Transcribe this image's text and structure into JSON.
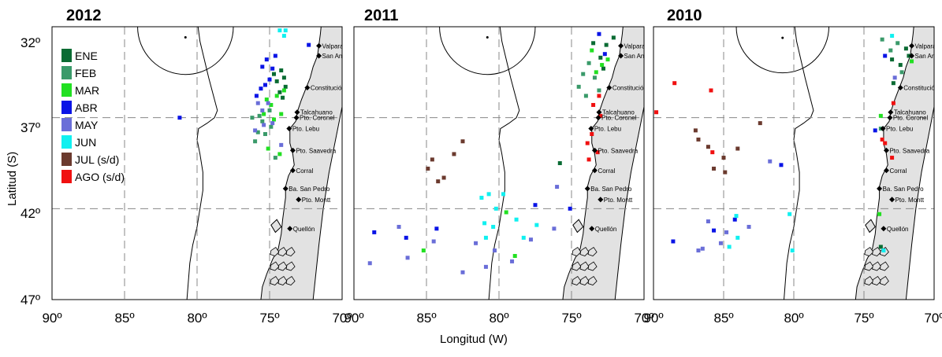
{
  "figure": {
    "xlabel": "Longitud (W)",
    "ylabel": "Latitud (S)"
  },
  "legend": [
    {
      "label": "ENE",
      "color": "#0a6b33"
    },
    {
      "label": "FEB",
      "color": "#3a9a6a"
    },
    {
      "label": "MAR",
      "color": "#22e022"
    },
    {
      "label": "ABR",
      "color": "#0a14e6"
    },
    {
      "label": "MAY",
      "color": "#6a6ed8"
    },
    {
      "label": "JUN",
      "color": "#10f0f0"
    },
    {
      "label": "JUL (s/d)",
      "color": "#6b3a2e"
    },
    {
      "label": "AGO (s/d)",
      "color": "#f01010"
    }
  ],
  "cities": [
    {
      "name": "Valparaíso",
      "lon": 71.6,
      "lat": 33.05
    },
    {
      "name": "San Antonio",
      "lon": 71.6,
      "lat": 33.6
    },
    {
      "name": "Constitución",
      "lon": 72.4,
      "lat": 35.35
    },
    {
      "name": "Talcahuano",
      "lon": 73.1,
      "lat": 36.7
    },
    {
      "name": "Pto. Coronel",
      "lon": 73.15,
      "lat": 37.0
    },
    {
      "name": "Pto. Lebu",
      "lon": 73.65,
      "lat": 37.6
    },
    {
      "name": "Pto. Saavedra",
      "lon": 73.4,
      "lat": 38.8
    },
    {
      "name": "Corral",
      "lon": 73.4,
      "lat": 39.9
    },
    {
      "name": "Ba. San Pedro",
      "lon": 73.9,
      "lat": 40.9
    },
    {
      "name": "Pto. Montt",
      "lon": 73.0,
      "lat": 41.5
    },
    {
      "name": "Quellón",
      "lon": 73.6,
      "lat": 43.1
    }
  ],
  "chart_data": [
    {
      "type": "scatter",
      "title": "2012",
      "xlim": [
        90,
        70
      ],
      "ylim": [
        47,
        32
      ],
      "xticks": [
        "90º",
        "85º",
        "80º",
        "75º",
        "70º"
      ],
      "yticks": [
        "32º",
        "37º",
        "42º",
        "47º"
      ],
      "series": [
        {
          "name": "ENE",
          "points": [
            [
              74.2,
              34.4
            ],
            [
              74.0,
              34.8
            ],
            [
              74.5,
              35.0
            ],
            [
              73.9,
              35.3
            ],
            [
              74.3,
              35.6
            ],
            [
              74.7,
              34.6
            ],
            [
              74.1,
              35.9
            ]
          ]
        },
        {
          "name": "FEB",
          "points": [
            [
              75.5,
              37.2
            ],
            [
              75.8,
              37.8
            ],
            [
              76.0,
              38.3
            ],
            [
              75.3,
              37.9
            ],
            [
              74.6,
              39.2
            ],
            [
              76.2,
              37.0
            ],
            [
              75.0,
              36.6
            ],
            [
              74.9,
              37.5
            ],
            [
              75.7,
              36.9
            ]
          ]
        },
        {
          "name": "MAR",
          "points": [
            [
              74.5,
              35.8
            ],
            [
              74.9,
              36.3
            ],
            [
              74.2,
              36.8
            ],
            [
              75.2,
              36.0
            ],
            [
              74.7,
              37.1
            ],
            [
              75.4,
              36.8
            ],
            [
              74.0,
              35.5
            ],
            [
              75.1,
              38.7
            ],
            [
              74.3,
              39.0
            ]
          ]
        },
        {
          "name": "ABR",
          "points": [
            [
              75.2,
              33.8
            ],
            [
              75.5,
              34.2
            ],
            [
              74.8,
              34.3
            ],
            [
              75.0,
              34.9
            ],
            [
              75.6,
              35.4
            ],
            [
              74.6,
              33.6
            ],
            [
              75.3,
              35.2
            ],
            [
              72.3,
              33.0
            ],
            [
              75.9,
              35.8
            ],
            [
              81.2,
              37.0
            ]
          ]
        },
        {
          "name": "MAY",
          "points": [
            [
              75.8,
              36.2
            ],
            [
              75.5,
              36.6
            ],
            [
              74.8,
              37.3
            ],
            [
              75.4,
              37.4
            ],
            [
              76.0,
              37.7
            ],
            [
              74.2,
              38.5
            ],
            [
              75.1,
              36.2
            ]
          ]
        },
        {
          "name": "JUN",
          "points": [
            [
              73.9,
              32.2
            ],
            [
              74.3,
              32.2
            ],
            [
              74.0,
              32.5
            ]
          ]
        },
        {
          "name": "JUL (s/d)",
          "points": []
        },
        {
          "name": "AGO (s/d)",
          "points": []
        }
      ]
    },
    {
      "type": "scatter",
      "title": "2011",
      "xlim": [
        90,
        70
      ],
      "ylim": [
        47,
        32
      ],
      "xticks": [
        "90º",
        "85º",
        "80º",
        "75º",
        "70º"
      ],
      "yticks": [
        "32º",
        "37º",
        "42º",
        "47º"
      ],
      "series": [
        {
          "name": "ENE",
          "points": [
            [
              72.1,
              32.6
            ],
            [
              72.6,
              33.0
            ],
            [
              73.0,
              33.7
            ],
            [
              73.5,
              32.9
            ],
            [
              75.8,
              39.5
            ],
            [
              72.8,
              34.3
            ]
          ]
        },
        {
          "name": "FEB",
          "points": [
            [
              74.2,
              34.6
            ],
            [
              73.8,
              34.0
            ],
            [
              73.4,
              34.8
            ],
            [
              74.5,
              35.3
            ],
            [
              73.1,
              35.5
            ],
            [
              74.0,
              35.8
            ]
          ]
        },
        {
          "name": "MAR",
          "points": [
            [
              73.6,
              33.3
            ],
            [
              72.9,
              34.1
            ],
            [
              72.5,
              33.8
            ],
            [
              73.3,
              34.5
            ],
            [
              78.9,
              44.6
            ],
            [
              85.2,
              44.3
            ],
            [
              79.5,
              42.2
            ]
          ]
        },
        {
          "name": "ABR",
          "points": [
            [
              73.1,
              32.4
            ],
            [
              72.7,
              33.5
            ],
            [
              88.6,
              43.3
            ],
            [
              84.3,
              43.1
            ],
            [
              86.4,
              43.6
            ],
            [
              77.5,
              41.8
            ],
            [
              75.1,
              42.0
            ]
          ]
        },
        {
          "name": "MAY",
          "points": [
            [
              86.9,
              43.0
            ],
            [
              84.5,
              43.8
            ],
            [
              81.6,
              43.9
            ],
            [
              80.3,
              44.3
            ],
            [
              79.1,
              44.9
            ],
            [
              82.5,
              45.5
            ],
            [
              88.9,
              45.0
            ],
            [
              86.3,
              44.7
            ],
            [
              80.9,
              45.2
            ],
            [
              77.8,
              43.7
            ],
            [
              76.0,
              40.8
            ],
            [
              76.2,
              43.1
            ]
          ]
        },
        {
          "name": "JUN",
          "points": [
            [
              81.2,
              41.4
            ],
            [
              80.2,
              42.0
            ],
            [
              78.8,
              42.6
            ],
            [
              80.4,
              43.0
            ],
            [
              77.4,
              42.9
            ],
            [
              79.7,
              41.2
            ],
            [
              81.0,
              42.8
            ],
            [
              78.3,
              43.6
            ],
            [
              80.9,
              43.6
            ],
            [
              80.7,
              41.2
            ]
          ]
        },
        {
          "name": "JUL (s/d)",
          "points": [
            [
              84.9,
              39.8
            ],
            [
              83.8,
              40.3
            ],
            [
              82.5,
              38.3
            ],
            [
              84.2,
              40.5
            ],
            [
              83.1,
              39.0
            ],
            [
              84.6,
              39.3
            ]
          ]
        },
        {
          "name": "AGO (s/d)",
          "points": [
            [
              73.6,
              37.9
            ],
            [
              73.9,
              38.4
            ],
            [
              73.2,
              38.9
            ],
            [
              73.8,
              39.3
            ],
            [
              73.1,
              35.8
            ],
            [
              73.5,
              36.3
            ],
            [
              73.0,
              36.9
            ]
          ]
        }
      ]
    },
    {
      "type": "scatter",
      "title": "2010",
      "xlim": [
        90,
        70
      ],
      "ylim": [
        47,
        32
      ],
      "xticks": [
        "90º",
        "85º",
        "80º",
        "75º",
        "70º"
      ],
      "yticks": [
        "32º",
        "37º",
        "42º",
        "47º"
      ],
      "series": [
        {
          "name": "ENE",
          "points": [
            [
              73.0,
              33.8
            ],
            [
              72.4,
              34.1
            ],
            [
              72.0,
              33.2
            ],
            [
              71.8,
              33.6
            ],
            [
              72.9,
              35.1
            ],
            [
              73.8,
              44.1
            ]
          ]
        },
        {
          "name": "FEB",
          "points": [
            [
              72.6,
              32.9
            ],
            [
              73.1,
              33.3
            ],
            [
              72.3,
              34.5
            ],
            [
              73.8,
              37.6
            ],
            [
              73.7,
              32.7
            ]
          ]
        },
        {
          "name": "MAR",
          "points": [
            [
              73.8,
              36.9
            ],
            [
              73.9,
              42.3
            ],
            [
              71.6,
              33.9
            ]
          ]
        },
        {
          "name": "ABR",
          "points": [
            [
              84.2,
              42.6
            ],
            [
              85.7,
              43.2
            ],
            [
              88.6,
              43.8
            ],
            [
              80.9,
              39.6
            ],
            [
              74.2,
              37.7
            ],
            [
              73.5,
              33.6
            ]
          ]
        },
        {
          "name": "MAY",
          "points": [
            [
              86.1,
              42.7
            ],
            [
              84.8,
              43.3
            ],
            [
              85.2,
              43.9
            ],
            [
              86.5,
              44.2
            ],
            [
              83.2,
              43.0
            ],
            [
              81.7,
              39.4
            ],
            [
              86.8,
              44.3
            ],
            [
              72.8,
              34.8
            ]
          ]
        },
        {
          "name": "JUN",
          "points": [
            [
              84.1,
              42.4
            ],
            [
              84.0,
              43.6
            ],
            [
              84.6,
              44.1
            ],
            [
              80.1,
              44.3
            ],
            [
              80.3,
              42.3
            ],
            [
              73.0,
              32.5
            ],
            [
              73.6,
              44.3
            ]
          ]
        },
        {
          "name": "JUL (s/d)",
          "points": [
            [
              84.9,
              40.0
            ],
            [
              86.1,
              38.6
            ],
            [
              85.0,
              39.2
            ],
            [
              86.8,
              38.2
            ],
            [
              87.0,
              37.7
            ],
            [
              85.7,
              39.8
            ],
            [
              82.4,
              37.3
            ],
            [
              84.0,
              38.7
            ]
          ]
        },
        {
          "name": "AGO (s/d)",
          "points": [
            [
              88.5,
              35.1
            ],
            [
              85.9,
              35.5
            ],
            [
              89.8,
              36.7
            ],
            [
              85.8,
              38.9
            ],
            [
              73.5,
              38.4
            ],
            [
              73.0,
              39.2
            ],
            [
              73.7,
              38.2
            ],
            [
              72.9,
              36.2
            ]
          ]
        }
      ]
    }
  ]
}
